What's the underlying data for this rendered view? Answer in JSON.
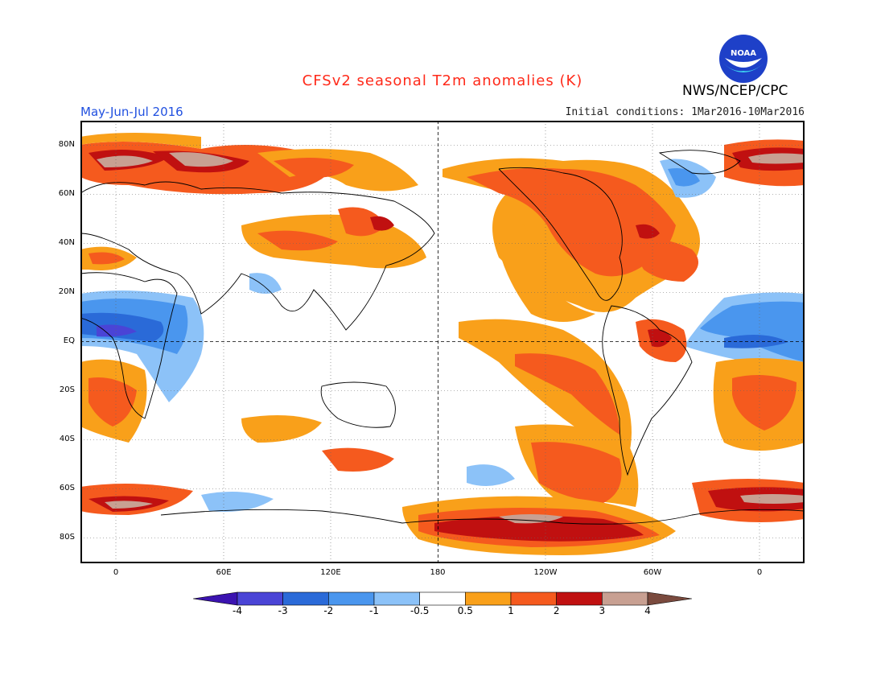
{
  "title": "CFSv2 seasonal T2m anomalies (K)",
  "organization": "NWS/NCEP/CPC",
  "logo_text": "NOAA",
  "period": "May-Jun-Jul 2016",
  "initial_conditions": "Initial conditions: 1Mar2016-10Mar2016",
  "y_axis_labels": [
    "80N",
    "60N",
    "40N",
    "20N",
    "EQ",
    "20S",
    "40S",
    "60S",
    "80S"
  ],
  "x_axis_labels": [
    "0",
    "60E",
    "120E",
    "180",
    "120W",
    "60W",
    "0"
  ],
  "colorbar": {
    "labels": [
      "-4",
      "-3",
      "-2",
      "-1",
      "-0.5",
      "0.5",
      "1",
      "2",
      "3",
      "4"
    ],
    "colors": [
      "#3b13b0",
      "#4a44d6",
      "#2a6ad8",
      "#4a96ee",
      "#8cc2f8",
      "#ffffff",
      "#f9a01a",
      "#f55a1e",
      "#c01010",
      "#c8a092",
      "#7a4a3e"
    ]
  }
}
